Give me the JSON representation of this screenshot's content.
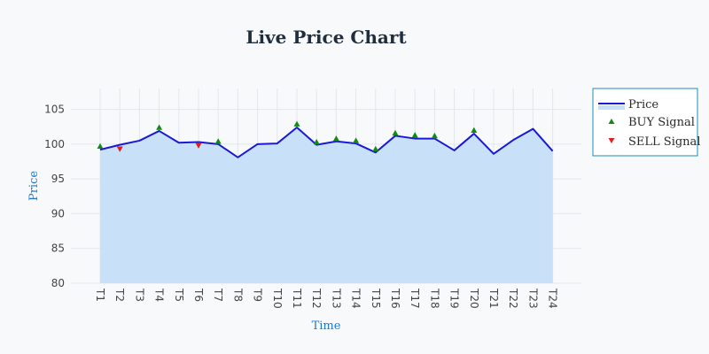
{
  "chart_data": {
    "type": "line",
    "title": "Live Price Chart",
    "xlabel": "Time",
    "ylabel": "Price",
    "ylim": [
      80,
      108
    ],
    "yticks": [
      80,
      85,
      90,
      95,
      100,
      105
    ],
    "categories": [
      "T1",
      "T2",
      "T3",
      "T4",
      "T5",
      "T6",
      "T7",
      "T8",
      "T9",
      "T10",
      "T11",
      "T12",
      "T13",
      "T14",
      "T15",
      "T16",
      "T17",
      "T18",
      "T19",
      "T20",
      "T21",
      "T22",
      "T23",
      "T24"
    ],
    "series": [
      {
        "name": "Price",
        "kind": "area-line",
        "color": "#1a1ad6",
        "fill": "#c5dff8",
        "values": [
          99.2,
          99.9,
          100.5,
          101.9,
          100.2,
          100.3,
          100.0,
          98.1,
          100.0,
          100.1,
          102.4,
          99.9,
          100.4,
          100.1,
          98.8,
          101.2,
          100.8,
          100.8,
          99.1,
          101.5,
          98.6,
          100.6,
          102.2,
          99.0
        ]
      },
      {
        "name": "BUY Signal",
        "kind": "marker",
        "marker": "triangle-up",
        "color": "#138a13",
        "points": [
          {
            "x": "T1",
            "y": 99.7
          },
          {
            "x": "T4",
            "y": 102.4
          },
          {
            "x": "T7",
            "y": 100.4
          },
          {
            "x": "T11",
            "y": 102.9
          },
          {
            "x": "T12",
            "y": 100.3
          },
          {
            "x": "T13",
            "y": 100.8
          },
          {
            "x": "T14",
            "y": 100.5
          },
          {
            "x": "T15",
            "y": 99.3
          },
          {
            "x": "T16",
            "y": 101.6
          },
          {
            "x": "T17",
            "y": 101.3
          },
          {
            "x": "T18",
            "y": 101.2
          },
          {
            "x": "T20",
            "y": 102.0
          }
        ]
      },
      {
        "name": "SELL Signal",
        "kind": "marker",
        "marker": "triangle-down",
        "color": "#e02020",
        "points": [
          {
            "x": "T2",
            "y": 99.3
          },
          {
            "x": "T6",
            "y": 99.8
          }
        ]
      }
    ],
    "grid": true,
    "legend": "top-right"
  }
}
